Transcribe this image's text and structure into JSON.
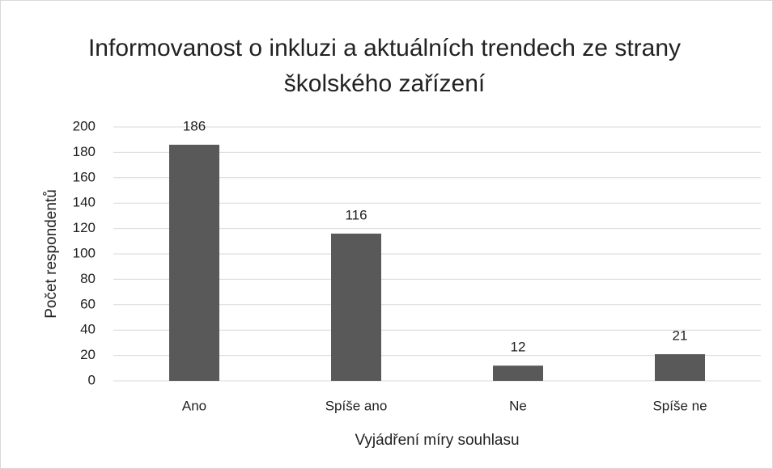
{
  "chart_data": {
    "type": "bar",
    "title": "Informovanost o inkluzi a aktuálních trendech ze strany školského zařízení",
    "x_label": "Vyjádření míry souhlasu",
    "y_label": "Počet respondentů",
    "categories": [
      "Ano",
      "Spíše ano",
      "Ne",
      "Spíše ne"
    ],
    "values": [
      186,
      116,
      12,
      21
    ],
    "color": "#595959",
    "ylim": [
      0,
      200
    ],
    "yticks": [
      0,
      20,
      40,
      60,
      80,
      100,
      120,
      140,
      160,
      180,
      200
    ],
    "grid": true,
    "data_labels": true
  }
}
